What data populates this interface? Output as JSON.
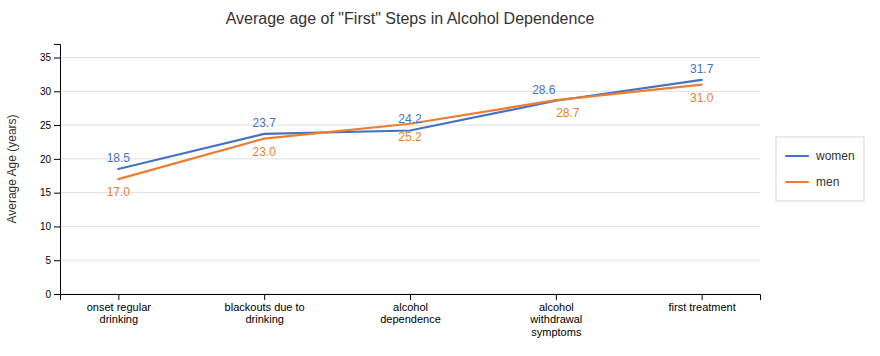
{
  "chart_data": {
    "type": "line",
    "title": "Average age of \"First\" Steps in Alcohol Dependence",
    "ylabel": "Average Age (years)",
    "categories": [
      "onset regular\ndrinking",
      "blackouts due to\ndrinking",
      "alcohol\ndependence",
      "alcohol\nwithdrawal\nsymptoms",
      "first treatment"
    ],
    "series": [
      {
        "name": "women",
        "color": "#4472C4",
        "values": [
          18.5,
          23.7,
          24.2,
          28.6,
          31.7
        ]
      },
      {
        "name": "men",
        "color": "#ED7D31",
        "values": [
          17.0,
          23.0,
          25.2,
          28.7,
          31.0
        ],
        "value_labels": [
          "17.0",
          "23.0",
          "25.2",
          "28.7",
          "31.0"
        ]
      }
    ],
    "ylim": [
      0,
      37
    ],
    "yticks": [
      0,
      5,
      10,
      15,
      20,
      25,
      30,
      35
    ],
    "grid": true,
    "legend": "right",
    "data_labels": true
  }
}
